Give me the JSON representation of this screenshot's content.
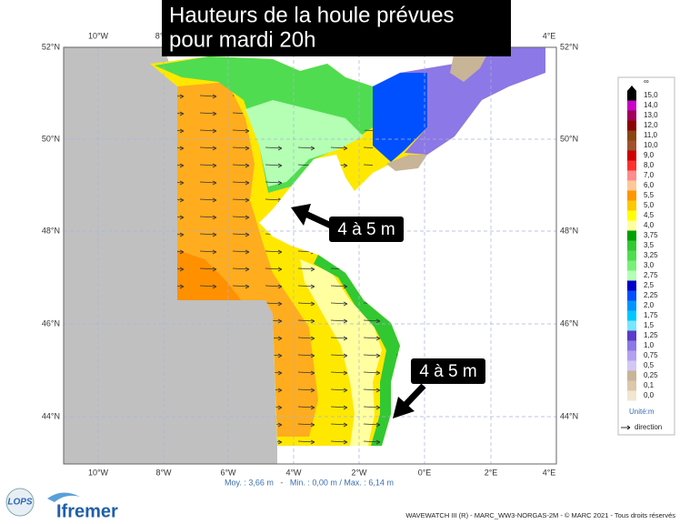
{
  "title": [
    "Hauteurs de la houle prévues",
    "pour mardi 20h"
  ],
  "map": {
    "top_labels": [
      "10°W",
      "8°",
      "4°E"
    ],
    "bottom_labels": [
      "10°W",
      "8°W",
      "6°W",
      "4°W",
      "2°W",
      "0°E",
      "2°E",
      "4°E"
    ],
    "lat_labels": [
      "52°N",
      "50°N",
      "48°N",
      "46°N",
      "44°N"
    ]
  },
  "annotations": [
    "4 à 5 m",
    "4 à 5 m"
  ],
  "stats": "Moy. : 3,66 m   -   Min. : 0,00 m / Max. : 6,14 m",
  "legend": {
    "top": "∞",
    "items": [
      {
        "label": "15,0",
        "color": "#000000"
      },
      {
        "label": "14,0",
        "color": "#c800c8"
      },
      {
        "label": "13,0",
        "color": "#a0005a"
      },
      {
        "label": "12,0",
        "color": "#8b0000"
      },
      {
        "label": "11,0",
        "color": "#8b4513"
      },
      {
        "label": "10,0",
        "color": "#a0522d"
      },
      {
        "label": "9,0",
        "color": "#cd0000"
      },
      {
        "label": "8,0",
        "color": "#ff3030"
      },
      {
        "label": "7,0",
        "color": "#ff8c8c"
      },
      {
        "label": "6,0",
        "color": "#ffc896"
      },
      {
        "label": "5,5",
        "color": "#ff9600"
      },
      {
        "label": "5,0",
        "color": "#ffc800"
      },
      {
        "label": "4,5",
        "color": "#ffff00"
      },
      {
        "label": "4,0",
        "color": "#ffffa0"
      },
      {
        "label": "3,75",
        "color": "#00a000"
      },
      {
        "label": "3,5",
        "color": "#32c832"
      },
      {
        "label": "3,25",
        "color": "#50dc50"
      },
      {
        "label": "3,0",
        "color": "#78f078"
      },
      {
        "label": "2,75",
        "color": "#b4ffb4"
      },
      {
        "label": "2,5",
        "color": "#0000c8"
      },
      {
        "label": "2,25",
        "color": "#0050ff"
      },
      {
        "label": "2,0",
        "color": "#0096ff"
      },
      {
        "label": "1,75",
        "color": "#00c8ff"
      },
      {
        "label": "1,5",
        "color": "#78e6ff"
      },
      {
        "label": "1,25",
        "color": "#5a3cc8"
      },
      {
        "label": "1,0",
        "color": "#8c78e6"
      },
      {
        "label": "0,75",
        "color": "#b4a0f0"
      },
      {
        "label": "0,5",
        "color": "#d2c8f5"
      },
      {
        "label": "0,25",
        "color": "#c8b496"
      },
      {
        "label": "0,1",
        "color": "#dcc8aa"
      },
      {
        "label": "0,0",
        "color": "#f0e6d2"
      }
    ],
    "unit": "Unité:m",
    "direction": "direction"
  },
  "footer": "WAVEWATCH III (R) - MARC_WW3-NORGAS-2M - © MARC 2021 - Tous droits réservés",
  "logos": [
    "LOPS",
    "Ifremer"
  ]
}
